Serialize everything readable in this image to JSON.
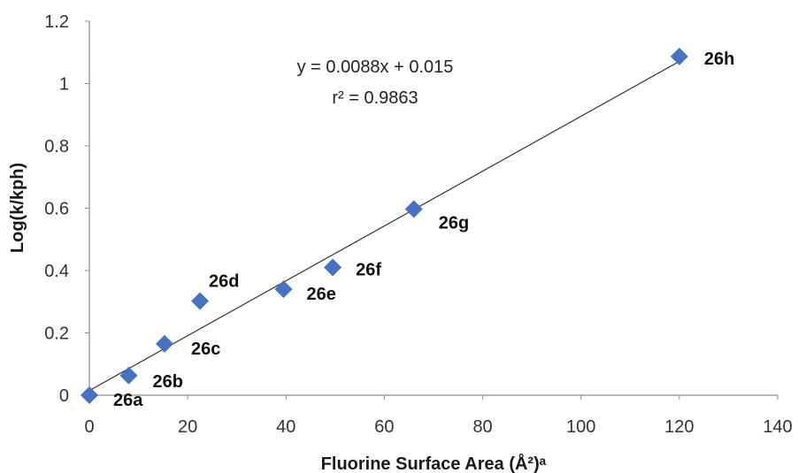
{
  "chart_data": {
    "type": "scatter",
    "xlabel": "Fluorine Surface Area (Å²)ᵃ",
    "ylabel": "Log(k/kph)",
    "xlim": [
      0,
      140
    ],
    "ylim": [
      0,
      1.2
    ],
    "x_ticks": [
      0,
      20,
      40,
      60,
      80,
      100,
      120,
      140
    ],
    "y_ticks": [
      0,
      0.2,
      0.4,
      0.6,
      0.8,
      1,
      1.2
    ],
    "grid": false,
    "marker_color": "#4472C4",
    "series": [
      {
        "points": [
          {
            "label": "26a",
            "x": 0,
            "y": 0.0
          },
          {
            "label": "26b",
            "x": 8,
            "y": 0.063
          },
          {
            "label": "26c",
            "x": 15.3,
            "y": 0.165
          },
          {
            "label": "26d",
            "x": 22.5,
            "y": 0.302
          },
          {
            "label": "26e",
            "x": 39.5,
            "y": 0.34
          },
          {
            "label": "26f",
            "x": 49.5,
            "y": 0.41
          },
          {
            "label": "26g",
            "x": 66,
            "y": 0.597
          },
          {
            "label": "26h",
            "x": 120,
            "y": 1.087
          }
        ]
      }
    ],
    "trendline": {
      "slope": 0.0088,
      "intercept": 0.015,
      "equation": "y = 0.0088x + 0.015",
      "r2_label": "r² = 0.9863"
    }
  }
}
